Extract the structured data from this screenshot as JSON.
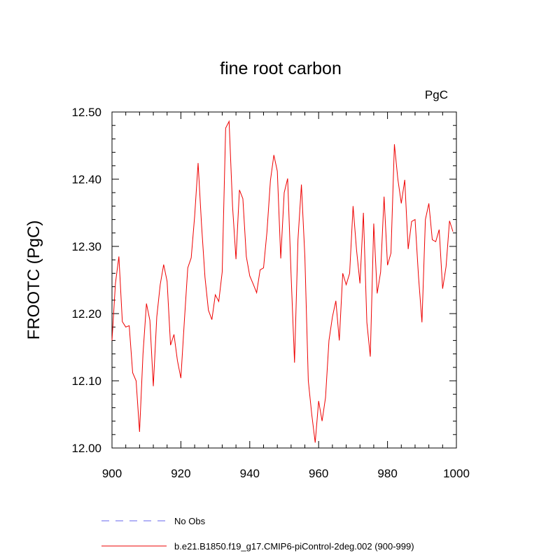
{
  "chart_data": {
    "type": "line",
    "title": "fine root carbon",
    "units_label": "PgC",
    "xlabel": "",
    "ylabel": "FROOTC  (PgC)",
    "xlim": [
      900,
      1000
    ],
    "ylim": [
      12.0,
      12.5
    ],
    "x_ticks": [
      900,
      920,
      940,
      960,
      980,
      1000
    ],
    "x_tick_labels": [
      "900",
      "920",
      "940",
      "960",
      "980",
      "1000"
    ],
    "y_ticks": [
      12.0,
      12.1,
      12.2,
      12.3,
      12.4,
      12.5
    ],
    "y_tick_labels": [
      "12.00",
      "12.10",
      "12.20",
      "12.30",
      "12.40",
      "12.50"
    ],
    "grid": false,
    "legend": [
      {
        "label": "No Obs",
        "color": "#6666ee",
        "style": "dashed"
      },
      {
        "label": "b.e21.B1850.f19_g17.CMIP6-piControl-2deg.002 (900-999)",
        "color": "#ee0000",
        "style": "solid"
      }
    ],
    "series": [
      {
        "name": "b.e21.B1850.f19_g17.CMIP6-piControl-2deg.002 (900-999)",
        "color": "#ee0000",
        "x": [
          900,
          901,
          902,
          903,
          904,
          905,
          906,
          907,
          908,
          909,
          910,
          911,
          912,
          913,
          914,
          915,
          916,
          917,
          918,
          919,
          920,
          921,
          922,
          923,
          924,
          925,
          926,
          927,
          928,
          929,
          930,
          931,
          932,
          933,
          934,
          935,
          936,
          937,
          938,
          939,
          940,
          941,
          942,
          943,
          944,
          945,
          946,
          947,
          948,
          949,
          950,
          951,
          952,
          953,
          954,
          955,
          956,
          957,
          958,
          959,
          960,
          961,
          962,
          963,
          964,
          965,
          966,
          967,
          968,
          969,
          970,
          971,
          972,
          973,
          974,
          975,
          976,
          977,
          978,
          979,
          980,
          981,
          982,
          983,
          984,
          985,
          986,
          987,
          988,
          989,
          990,
          991,
          992,
          993,
          994,
          995,
          996,
          997,
          998,
          999
        ],
        "values": [
          12.16,
          12.245,
          12.285,
          12.188,
          12.18,
          12.182,
          12.112,
          12.1,
          12.024,
          12.14,
          12.215,
          12.19,
          12.092,
          12.195,
          12.243,
          12.273,
          12.248,
          12.153,
          12.169,
          12.13,
          12.104,
          12.188,
          12.268,
          12.283,
          12.345,
          12.424,
          12.332,
          12.254,
          12.205,
          12.191,
          12.228,
          12.218,
          12.262,
          12.476,
          12.486,
          12.36,
          12.281,
          12.384,
          12.371,
          12.285,
          12.256,
          12.244,
          12.231,
          12.265,
          12.268,
          12.322,
          12.398,
          12.436,
          12.412,
          12.282,
          12.38,
          12.401,
          12.258,
          12.127,
          12.31,
          12.392,
          12.285,
          12.1,
          12.05,
          12.008,
          12.07,
          12.04,
          12.075,
          12.16,
          12.195,
          12.219,
          12.16,
          12.26,
          12.243,
          12.26,
          12.36,
          12.295,
          12.245,
          12.35,
          12.187,
          12.136,
          12.334,
          12.23,
          12.262,
          12.374,
          12.272,
          12.29,
          12.452,
          12.4,
          12.364,
          12.399,
          12.296,
          12.337,
          12.34,
          12.255,
          12.187,
          12.34,
          12.364,
          12.31,
          12.307,
          12.325,
          12.237,
          12.27,
          12.338,
          12.322
        ]
      }
    ]
  }
}
